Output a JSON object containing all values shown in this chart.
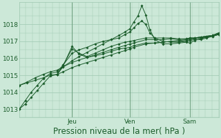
{
  "title": "",
  "xlabel": "Pression niveau de la mer( hPa )",
  "ylabel": "",
  "bg_color": "#cce8d8",
  "grid_color": "#9dc8b0",
  "line_color": "#1a5c2a",
  "ylim": [
    1012.5,
    1019.3
  ],
  "xlim": [
    0.0,
    1.0
  ],
  "day_labels": [
    "Jeu",
    "Ven",
    "Sam"
  ],
  "day_positions": [
    0.265,
    0.555,
    0.855
  ],
  "xlabel_fontsize": 8.5,
  "tick_fontsize": 6.5,
  "yticks": [
    1013,
    1014,
    1015,
    1016,
    1017,
    1018
  ],
  "series": [
    [
      0.0,
      1013.0,
      0.03,
      1013.3,
      0.06,
      1013.7,
      0.09,
      1014.1,
      0.12,
      1014.5,
      0.155,
      1014.95,
      0.19,
      1015.05,
      0.22,
      1015.5,
      0.265,
      1015.85,
      0.3,
      1016.1,
      0.34,
      1016.35,
      0.38,
      1016.6,
      0.42,
      1016.85,
      0.46,
      1017.1,
      0.5,
      1017.35,
      0.53,
      1017.55,
      0.555,
      1017.75,
      0.575,
      1018.15,
      0.595,
      1018.5,
      0.615,
      1019.1,
      0.635,
      1018.55,
      0.655,
      1017.7,
      0.68,
      1017.1,
      0.72,
      1016.85,
      0.76,
      1016.85,
      0.8,
      1016.9,
      0.84,
      1016.95,
      0.855,
      1016.9,
      0.88,
      1017.05,
      0.91,
      1017.15,
      0.94,
      1017.25,
      0.97,
      1017.35,
      1.0,
      1017.5
    ],
    [
      0.0,
      1013.0,
      0.03,
      1013.5,
      0.06,
      1014.0,
      0.09,
      1014.4,
      0.12,
      1014.8,
      0.155,
      1015.1,
      0.19,
      1015.2,
      0.22,
      1015.6,
      0.265,
      1016.3,
      0.3,
      1016.5,
      0.34,
      1016.65,
      0.38,
      1016.85,
      0.42,
      1017.0,
      0.46,
      1017.1,
      0.5,
      1017.2,
      0.53,
      1017.4,
      0.555,
      1017.55,
      0.575,
      1017.8,
      0.595,
      1018.05,
      0.615,
      1018.2,
      0.635,
      1018.0,
      0.655,
      1017.5,
      0.68,
      1017.2,
      0.72,
      1017.0,
      0.76,
      1016.95,
      0.8,
      1016.95,
      0.84,
      1017.0,
      0.855,
      1017.05,
      0.88,
      1017.1,
      0.91,
      1017.1,
      0.94,
      1017.2,
      0.97,
      1017.3,
      1.0,
      1017.4
    ],
    [
      0.0,
      1014.4,
      0.04,
      1014.55,
      0.08,
      1014.7,
      0.12,
      1014.85,
      0.155,
      1015.0,
      0.19,
      1015.05,
      0.22,
      1015.2,
      0.265,
      1015.45,
      0.3,
      1015.6,
      0.34,
      1015.75,
      0.38,
      1015.9,
      0.42,
      1016.05,
      0.46,
      1016.2,
      0.5,
      1016.35,
      0.53,
      1016.45,
      0.555,
      1016.55,
      0.575,
      1016.65,
      0.635,
      1016.85,
      0.68,
      1016.9,
      0.72,
      1016.95,
      0.76,
      1017.0,
      0.8,
      1017.05,
      0.84,
      1017.1,
      0.855,
      1017.15,
      0.88,
      1017.2,
      0.91,
      1017.25,
      0.94,
      1017.3,
      0.97,
      1017.35,
      1.0,
      1017.5
    ],
    [
      0.0,
      1014.4,
      0.04,
      1014.6,
      0.08,
      1014.85,
      0.12,
      1015.05,
      0.155,
      1015.2,
      0.19,
      1015.3,
      0.22,
      1015.5,
      0.265,
      1015.75,
      0.3,
      1015.9,
      0.34,
      1016.05,
      0.38,
      1016.2,
      0.42,
      1016.35,
      0.46,
      1016.5,
      0.5,
      1016.65,
      0.53,
      1016.75,
      0.555,
      1016.85,
      0.575,
      1016.9,
      0.635,
      1017.1,
      0.68,
      1017.1,
      0.72,
      1017.1,
      0.76,
      1017.15,
      0.8,
      1017.1,
      0.84,
      1017.15,
      0.855,
      1017.2,
      0.88,
      1017.2,
      0.91,
      1017.25,
      0.94,
      1017.3,
      0.97,
      1017.35,
      1.0,
      1017.45
    ],
    [
      0.19,
      1015.05,
      0.22,
      1015.55,
      0.265,
      1016.7,
      0.3,
      1016.25,
      0.34,
      1016.05,
      0.38,
      1016.15,
      0.42,
      1016.25,
      0.46,
      1016.4,
      0.5,
      1016.55,
      0.53,
      1016.6,
      0.555,
      1016.65,
      0.575,
      1016.75,
      0.635,
      1016.9,
      0.68,
      1016.9,
      0.72,
      1016.95,
      0.76,
      1017.0,
      0.8,
      1017.0,
      0.84,
      1017.05,
      0.855,
      1017.1,
      0.88,
      1017.15,
      0.91,
      1017.2,
      0.94,
      1017.25,
      0.97,
      1017.3,
      1.0,
      1017.4
    ],
    [
      0.19,
      1015.05,
      0.22,
      1015.6,
      0.265,
      1016.55,
      0.3,
      1016.3,
      0.34,
      1016.1,
      0.38,
      1016.3,
      0.42,
      1016.5,
      0.46,
      1016.7,
      0.5,
      1016.85,
      0.53,
      1016.95,
      0.555,
      1017.0,
      0.575,
      1017.05,
      0.635,
      1017.2,
      0.68,
      1017.2,
      0.72,
      1017.2,
      0.76,
      1017.2,
      0.8,
      1017.15,
      0.84,
      1017.15,
      0.855,
      1017.2,
      0.88,
      1017.2,
      0.91,
      1017.25,
      0.94,
      1017.3,
      0.97,
      1017.35,
      1.0,
      1017.45
    ]
  ]
}
